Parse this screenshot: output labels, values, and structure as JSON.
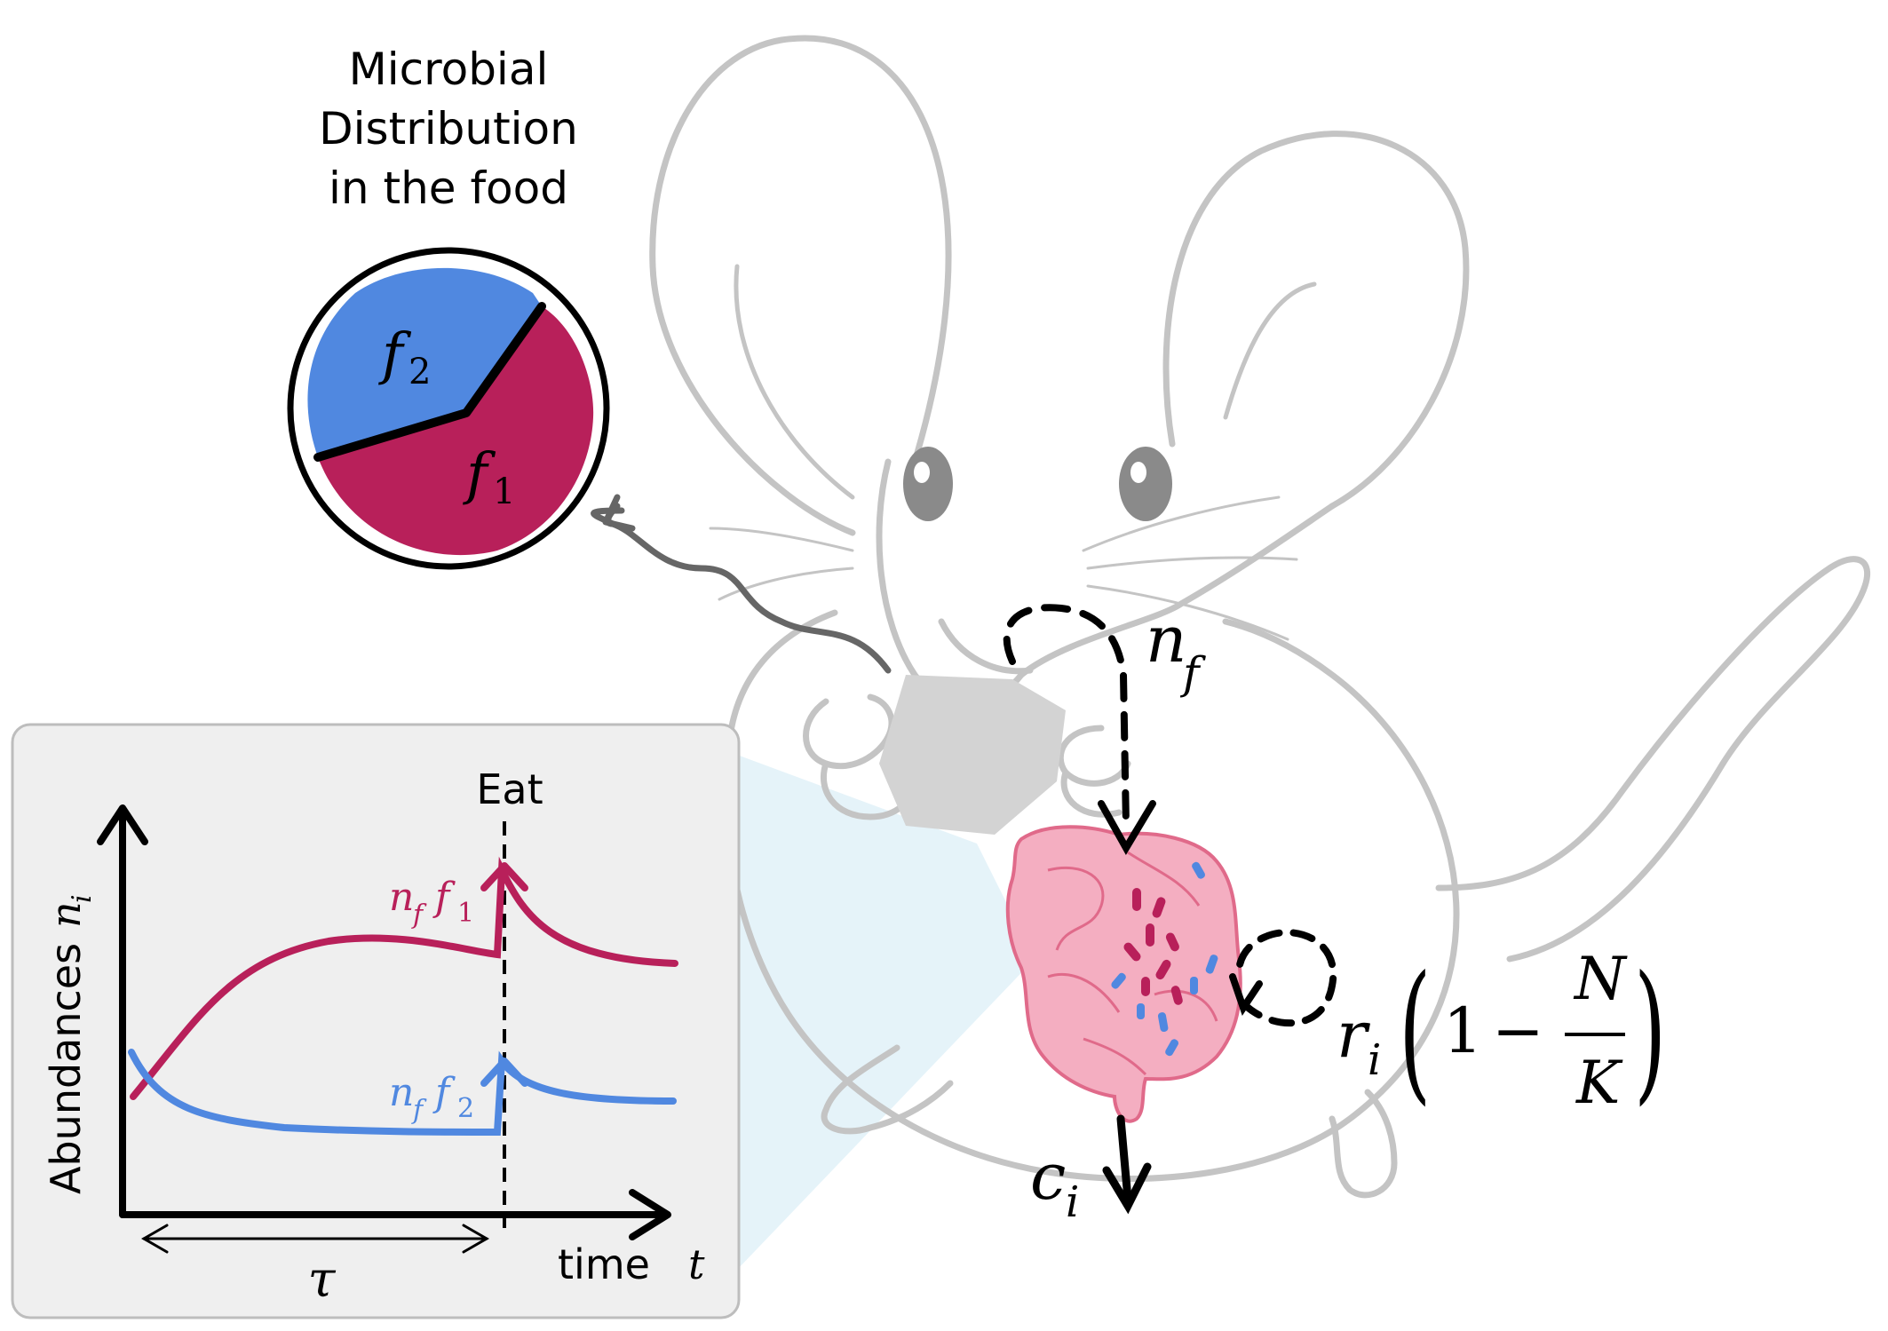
{
  "title_lines": [
    "Microbial",
    "Distribution",
    "in the food"
  ],
  "pie": {
    "label_f2": "f",
    "label_f2_sub": "2",
    "label_f1": "f",
    "label_f1_sub": "1",
    "color_f1": "#b8205a",
    "color_f2": "#5088e0"
  },
  "mouse_labels": {
    "nf_base": "n",
    "nf_sub": "f",
    "ci_base": "c",
    "ci_sub": "i",
    "ri_base": "r",
    "ri_sub": "i",
    "one": "1",
    "minus": "−",
    "N": "N",
    "K": "K",
    "lparen": "(",
    "rparen": ")"
  },
  "plot": {
    "eat_label": "Eat",
    "ylabel": "Abundances",
    "ylabel_var": "n",
    "ylabel_sub": "i",
    "xlabel": "time",
    "xlabel_var": "t",
    "tau": "τ",
    "curve1_label": "n",
    "curve1_label_sub": "f",
    "curve1_label_b": "f",
    "curve1_label_b_sub": "1",
    "curve2_label": "n",
    "curve2_label_sub": "f",
    "curve2_label_b": "f",
    "curve2_label_b_sub": "2"
  },
  "colors": {
    "magenta": "#b8205a",
    "blue": "#5088e0",
    "panel_bg": "#efefef",
    "mouse_line": "#c4c4c4",
    "gut_pink": "#f2a9bd"
  }
}
